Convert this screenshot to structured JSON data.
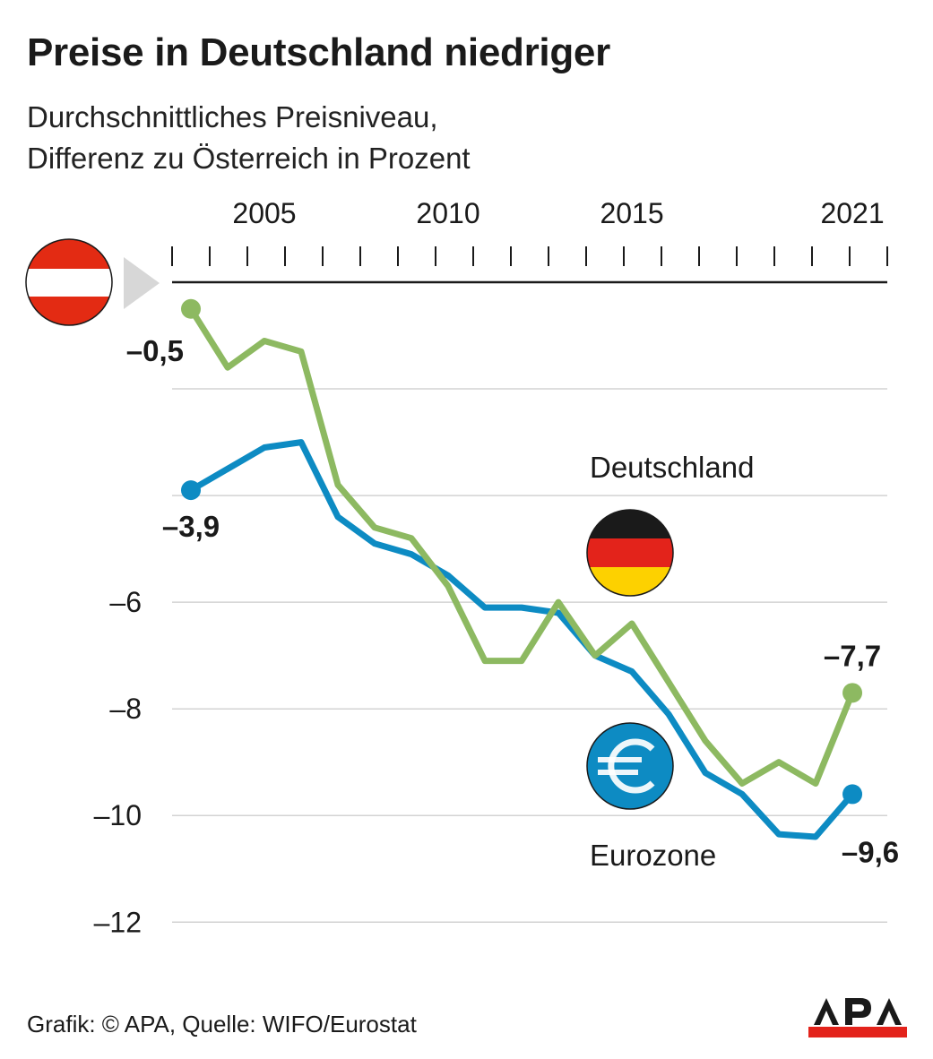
{
  "title": "Preise in Deutschland niedriger",
  "subtitle_lines": [
    "Durchschnittliches Preisniveau,",
    "Differenz zu Österreich in Prozent"
  ],
  "footer": "Grafik: © APA, Quelle: WIFO/Eurostat",
  "logo_text": "APA",
  "colors": {
    "deutschland": "#8db961",
    "eurozone": "#0d8bc3",
    "grid": "#d3d3d3",
    "axis": "#1a1a1a",
    "austria_red": "#e32b13",
    "marker_gray": "#d7d7d7",
    "de_black": "#1a1a1a",
    "de_red": "#e3231b",
    "de_gold": "#fdd100",
    "euro_blue": "#0d8bc3"
  },
  "icons": {
    "austria": "austria-flag-icon",
    "germany": "germany-flag-icon",
    "euro": "euro-icon",
    "pointer": "triangle-pointer-icon"
  },
  "chart_data": {
    "type": "line",
    "title": "Preise in Deutschland niedriger",
    "xlabel": "",
    "ylabel": "",
    "x": [
      2003,
      2004,
      2005,
      2006,
      2007,
      2008,
      2009,
      2010,
      2011,
      2012,
      2013,
      2014,
      2015,
      2016,
      2017,
      2018,
      2019,
      2020,
      2021
    ],
    "x_tick_labels": [
      "2005",
      "2010",
      "2015",
      "2021"
    ],
    "x_tick_values": [
      2005,
      2010,
      2015,
      2021
    ],
    "xlim": [
      2003,
      2022
    ],
    "y_tick_labels": [
      "–6",
      "–8",
      "–10",
      "–12"
    ],
    "y_tick_values": [
      -6,
      -8,
      -10,
      -12
    ],
    "y_grid_values": [
      -2,
      -4,
      -6,
      -8,
      -10,
      -12
    ],
    "ylim": [
      -12.6,
      0
    ],
    "grid": true,
    "reference_marker": "0 = Österreich",
    "series": [
      {
        "name": "Deutschland",
        "color_key": "deutschland",
        "values": [
          -0.5,
          -1.6,
          -1.1,
          -1.3,
          -3.8,
          -4.6,
          -4.8,
          -5.7,
          -7.1,
          -7.1,
          -6.0,
          -7.0,
          -6.4,
          -7.5,
          -8.6,
          -9.4,
          -9.0,
          -9.4,
          -7.7
        ],
        "first_label": "–0,5",
        "last_label": "–7,7"
      },
      {
        "name": "Eurozone",
        "color_key": "eurozone",
        "values": [
          -3.9,
          -3.5,
          -3.1,
          -3.0,
          -4.4,
          -4.9,
          -5.1,
          -5.5,
          -6.1,
          -6.1,
          -6.2,
          -7.0,
          -7.3,
          -8.1,
          -9.2,
          -9.6,
          -10.35,
          -10.4,
          -9.6
        ],
        "first_label": "–3,9",
        "last_label": "–9,6"
      }
    ]
  }
}
